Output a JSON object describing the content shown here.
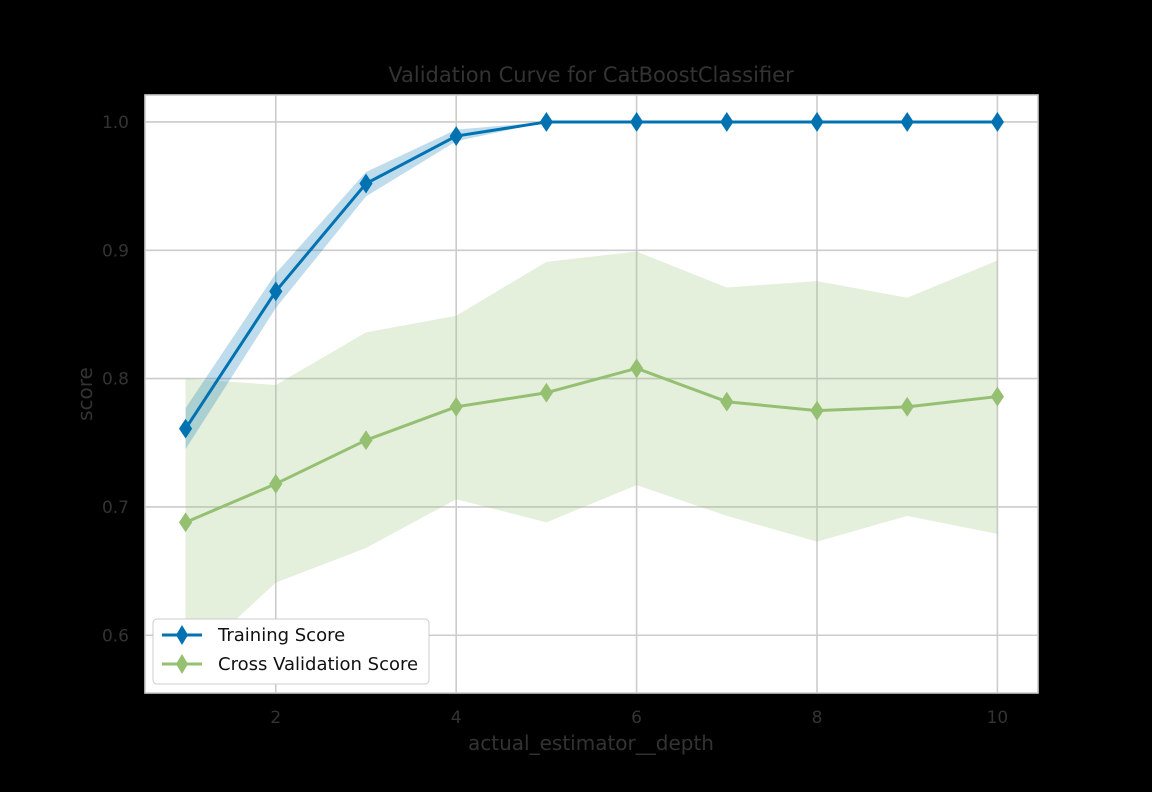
{
  "chart_data": {
    "type": "line",
    "title": "Validation Curve for CatBoostClassifier",
    "xlabel": "actual_estimator__depth",
    "ylabel": "score",
    "x": [
      1,
      2,
      3,
      4,
      5,
      6,
      7,
      8,
      9,
      10
    ],
    "xlim": [
      0.55,
      10.45
    ],
    "ylim": [
      0.555,
      1.021
    ],
    "xticks": [
      2,
      4,
      6,
      8,
      10
    ],
    "xtick_labels": [
      "2",
      "4",
      "6",
      "8",
      "10"
    ],
    "yticks": [
      0.6,
      0.7,
      0.8,
      0.9,
      1.0
    ],
    "ytick_labels": [
      "0.6",
      "0.7",
      "0.8",
      "0.9",
      "1.0"
    ],
    "grid": true,
    "legend_position": "lower-left",
    "series": [
      {
        "name": "Training Score",
        "color": "#0072b2",
        "marker": "diamond",
        "values": [
          0.761,
          0.868,
          0.952,
          0.989,
          1.0,
          1.0,
          1.0,
          1.0,
          1.0,
          1.0
        ],
        "band_lower": [
          0.745,
          0.855,
          0.942,
          0.985,
          1.0,
          1.0,
          1.0,
          1.0,
          1.0,
          1.0
        ],
        "band_upper": [
          0.777,
          0.882,
          0.961,
          0.994,
          1.0,
          1.0,
          1.0,
          1.0,
          1.0,
          1.0
        ]
      },
      {
        "name": "Cross Validation Score",
        "color": "#95c072",
        "marker": "diamond",
        "values": [
          0.688,
          0.718,
          0.752,
          0.778,
          0.789,
          0.808,
          0.782,
          0.775,
          0.778,
          0.786
        ],
        "band_lower": [
          0.576,
          0.641,
          0.668,
          0.706,
          0.688,
          0.717,
          0.693,
          0.673,
          0.693,
          0.679
        ],
        "band_upper": [
          0.8,
          0.795,
          0.836,
          0.849,
          0.891,
          0.899,
          0.871,
          0.876,
          0.863,
          0.892
        ]
      }
    ]
  }
}
